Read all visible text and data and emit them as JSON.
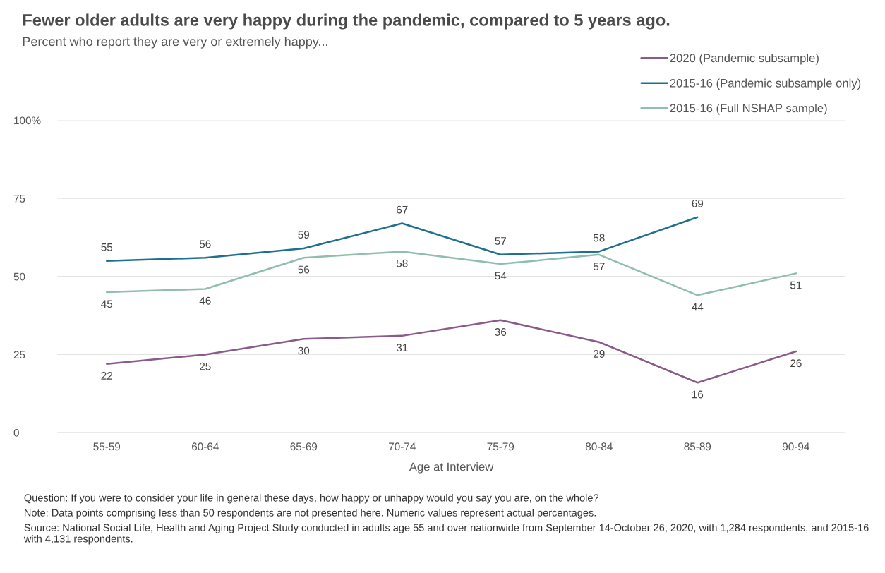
{
  "chart_data": {
    "type": "line",
    "title": "Fewer older adults are very happy during the pandemic, compared to 5 years ago.",
    "subtitle": "Percent who report they are very or extremely happy...",
    "xlabel": "Age at Interview",
    "categories": [
      "55-59",
      "60-64",
      "65-69",
      "70-74",
      "75-79",
      "80-84",
      "85-89",
      "90-94"
    ],
    "series": [
      {
        "name": "2020 (Pandemic subsample)",
        "color": "#8a5a8c",
        "values": [
          22,
          25,
          30,
          31,
          36,
          29,
          16,
          26
        ]
      },
      {
        "name": "2015-16 (Pandemic subsample only)",
        "color": "#1f6f8f",
        "values": [
          55,
          56,
          59,
          67,
          57,
          58,
          69,
          null
        ]
      },
      {
        "name": "2015-16 (Full NSHAP sample)",
        "color": "#8fbfaa",
        "values": [
          45,
          46,
          56,
          58,
          54,
          57,
          44,
          51
        ]
      }
    ],
    "ylim": [
      0,
      100
    ],
    "yticks": [
      0,
      25,
      50,
      75,
      {
        "value": 100,
        "label": "100%"
      }
    ],
    "grid": "y",
    "legend": "top right",
    "data_labels": true,
    "marker": "none",
    "line_style": "solid",
    "annotations": [
      "Question: If you were to consider your life in general these days, how happy or unhappy would you say you are, on the whole?",
      "Note: Data points comprising less than 50 respondents are not presented here. Numeric values represent actual percentages.",
      "Source: National Social Life, Health and Aging Project Study conducted in adults age 55 and over nationwide from September 14-October 26, 2020, with 1,284 respondents, and 2015-16 with 4,131 respondents."
    ]
  }
}
